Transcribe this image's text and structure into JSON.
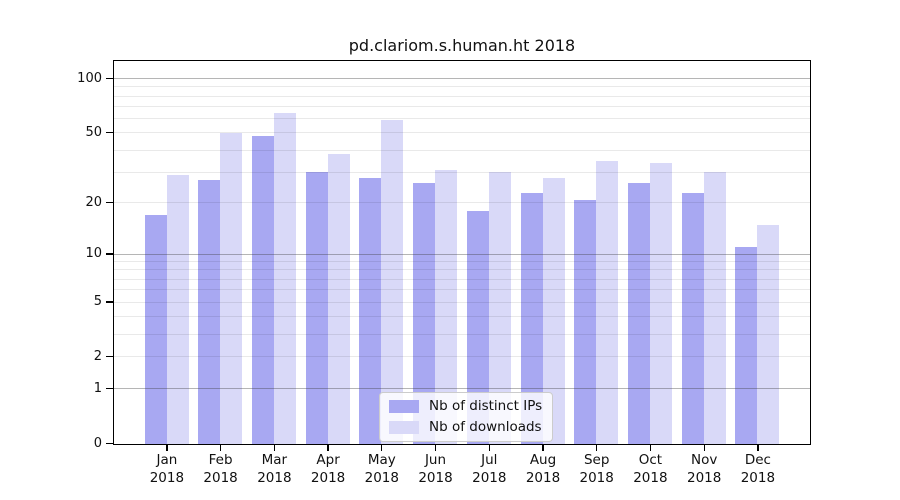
{
  "chart_data": {
    "type": "bar",
    "title": "pd.clariom.s.human.ht 2018",
    "categories": [
      "Jan 2018",
      "Feb 2018",
      "Mar 2018",
      "Apr 2018",
      "May 2018",
      "Jun 2018",
      "Jul 2018",
      "Aug 2018",
      "Sep 2018",
      "Oct 2018",
      "Nov 2018",
      "Dec 2018"
    ],
    "series": [
      {
        "name": "Nb of distinct IPs",
        "color": "#a8a8f2",
        "values": [
          17,
          27,
          48,
          30,
          28,
          26,
          18,
          23,
          21,
          26,
          23,
          11
        ]
      },
      {
        "name": "Nb of downloads",
        "color": "#d9d9f8",
        "values": [
          29,
          50,
          65,
          38,
          59,
          31,
          30,
          28,
          35,
          34,
          30,
          15
        ]
      }
    ],
    "yscale": "log1p",
    "ylim": [
      0,
      125
    ],
    "yticks": [
      0,
      1,
      2,
      5,
      10,
      20,
      50,
      100
    ],
    "grid": "horizontal",
    "grid_major_values": [
      1,
      10,
      100
    ],
    "grid_minor_values": [
      2,
      3,
      4,
      5,
      6,
      7,
      8,
      9,
      20,
      30,
      40,
      50,
      60,
      70,
      80,
      90
    ],
    "legend_position": "lower center",
    "xlabel": "",
    "ylabel": ""
  },
  "colors": {
    "axis": "#000000",
    "background": "#ffffff",
    "distinct_ips_bar": "#a8a8f2",
    "downloads_bar": "#d9d9f8"
  }
}
